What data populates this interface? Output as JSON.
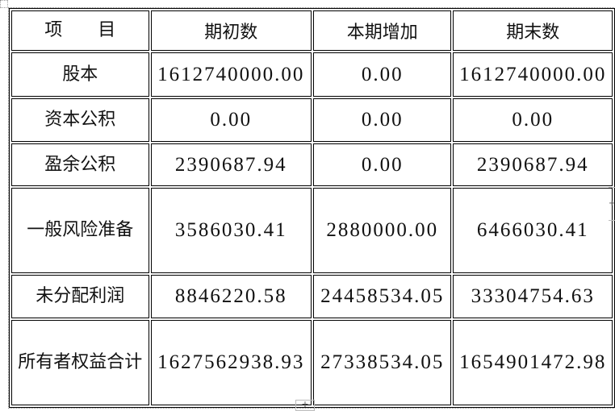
{
  "table": {
    "headers": [
      "项　　目",
      "期初数",
      "本期增加",
      "期末数"
    ],
    "rows": [
      {
        "item": "股本",
        "begin": "1612740000.00",
        "increase": "0.00",
        "end": "1612740000.00"
      },
      {
        "item": "资本公积",
        "begin": "0.00",
        "increase": "0.00",
        "end": "0.00"
      },
      {
        "item": "盈余公积",
        "begin": "2390687.94",
        "increase": "0.00",
        "end": "2390687.94"
      },
      {
        "item": "一般风险准备",
        "begin": "3586030.41",
        "increase": "2880000.00",
        "end": "6466030.41"
      },
      {
        "item": "未分配利润",
        "begin": "8846220.58",
        "increase": "24458534.05",
        "end": "33304754.63"
      },
      {
        "item": "所有者权益合计",
        "begin": "1627562938.93",
        "increase": "27338534.05",
        "end": "1654901472.98"
      }
    ]
  },
  "controls": {
    "add_row": "+",
    "add_col": "+"
  }
}
